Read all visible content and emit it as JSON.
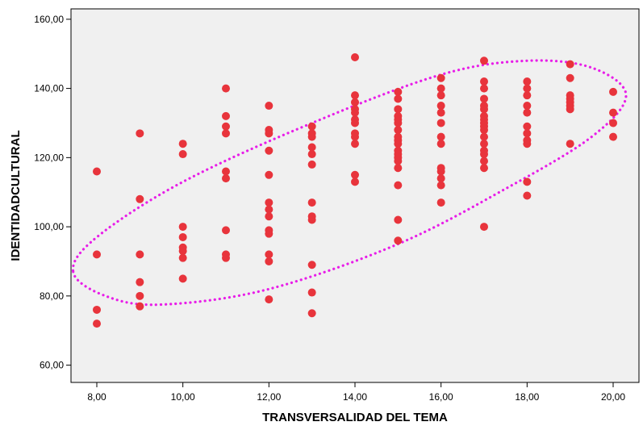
{
  "chart_data": {
    "type": "scatter",
    "xlabel": "TRANSVERSALIDAD DEL TEMA",
    "ylabel": "IDENTIDADCULTURAL",
    "xlim": [
      7.4,
      20.6
    ],
    "ylim": [
      55,
      163
    ],
    "x_ticks": [
      "8,00",
      "10,00",
      "12,00",
      "14,00",
      "16,00",
      "18,00",
      "20,00"
    ],
    "y_ticks": [
      "60,00",
      "80,00",
      "100,00",
      "120,00",
      "140,00",
      "160,00"
    ],
    "grid": false,
    "plot_background": "#f0f0f0",
    "marker_color": "#e8343c",
    "ellipse_color": "#e81ee8",
    "ellipse": {
      "description": "dotted confidence ellipse",
      "points": [
        [
          7.45,
          87
        ],
        [
          8.2,
          80
        ],
        [
          9.5,
          77.5
        ],
        [
          12.0,
          82
        ],
        [
          15.0,
          95
        ],
        [
          17.5,
          111
        ],
        [
          19.5,
          126
        ],
        [
          20.3,
          138
        ],
        [
          19.5,
          146
        ],
        [
          18.0,
          148
        ],
        [
          16.0,
          144
        ],
        [
          13.0,
          130
        ],
        [
          10.0,
          113
        ],
        [
          8.0,
          97
        ]
      ]
    },
    "points": [
      [
        8,
        116
      ],
      [
        8,
        92
      ],
      [
        8,
        76
      ],
      [
        8,
        72
      ],
      [
        9,
        127
      ],
      [
        9,
        108
      ],
      [
        9,
        92
      ],
      [
        9,
        84
      ],
      [
        9,
        80
      ],
      [
        9,
        77
      ],
      [
        10,
        124
      ],
      [
        10,
        121
      ],
      [
        10,
        100
      ],
      [
        10,
        97
      ],
      [
        10,
        94
      ],
      [
        10,
        93
      ],
      [
        10,
        91
      ],
      [
        10,
        85
      ],
      [
        11,
        140
      ],
      [
        11,
        132
      ],
      [
        11,
        129
      ],
      [
        11,
        127
      ],
      [
        11,
        116
      ],
      [
        11,
        114
      ],
      [
        11,
        99
      ],
      [
        11,
        92
      ],
      [
        11,
        91
      ],
      [
        12,
        135
      ],
      [
        12,
        128
      ],
      [
        12,
        127
      ],
      [
        12,
        122
      ],
      [
        12,
        115
      ],
      [
        12,
        107
      ],
      [
        12,
        105
      ],
      [
        12,
        103
      ],
      [
        12,
        99
      ],
      [
        12,
        98
      ],
      [
        12,
        92
      ],
      [
        12,
        90
      ],
      [
        12,
        79
      ],
      [
        13,
        129
      ],
      [
        13,
        127
      ],
      [
        13,
        126
      ],
      [
        13,
        123
      ],
      [
        13,
        121
      ],
      [
        13,
        118
      ],
      [
        13,
        107
      ],
      [
        13,
        103
      ],
      [
        13,
        102
      ],
      [
        13,
        89
      ],
      [
        13,
        81
      ],
      [
        13,
        75
      ],
      [
        14,
        149
      ],
      [
        14,
        138
      ],
      [
        14,
        136
      ],
      [
        14,
        134
      ],
      [
        14,
        133
      ],
      [
        14,
        131
      ],
      [
        14,
        130
      ],
      [
        14,
        127
      ],
      [
        14,
        126
      ],
      [
        14,
        124
      ],
      [
        14,
        115
      ],
      [
        14,
        113
      ],
      [
        15,
        139
      ],
      [
        15,
        137
      ],
      [
        15,
        134
      ],
      [
        15,
        132
      ],
      [
        15,
        131
      ],
      [
        15,
        130
      ],
      [
        15,
        128
      ],
      [
        15,
        126
      ],
      [
        15,
        125
      ],
      [
        15,
        124
      ],
      [
        15,
        122
      ],
      [
        15,
        121
      ],
      [
        15,
        120
      ],
      [
        15,
        119
      ],
      [
        15,
        117
      ],
      [
        15,
        112
      ],
      [
        15,
        102
      ],
      [
        15,
        96
      ],
      [
        16,
        143
      ],
      [
        16,
        140
      ],
      [
        16,
        138
      ],
      [
        16,
        135
      ],
      [
        16,
        133
      ],
      [
        16,
        130
      ],
      [
        16,
        126
      ],
      [
        16,
        124
      ],
      [
        16,
        117
      ],
      [
        16,
        116
      ],
      [
        16,
        114
      ],
      [
        16,
        112
      ],
      [
        16,
        107
      ],
      [
        17,
        148
      ],
      [
        17,
        142
      ],
      [
        17,
        140
      ],
      [
        17,
        137
      ],
      [
        17,
        135
      ],
      [
        17,
        134
      ],
      [
        17,
        132
      ],
      [
        17,
        131
      ],
      [
        17,
        130
      ],
      [
        17,
        129
      ],
      [
        17,
        128
      ],
      [
        17,
        126
      ],
      [
        17,
        124
      ],
      [
        17,
        122
      ],
      [
        17,
        121
      ],
      [
        17,
        119
      ],
      [
        17,
        117
      ],
      [
        17,
        100
      ],
      [
        18,
        142
      ],
      [
        18,
        140
      ],
      [
        18,
        138
      ],
      [
        18,
        135
      ],
      [
        18,
        133
      ],
      [
        18,
        129
      ],
      [
        18,
        127
      ],
      [
        18,
        125
      ],
      [
        18,
        124
      ],
      [
        18,
        113
      ],
      [
        18,
        109
      ],
      [
        19,
        147
      ],
      [
        19,
        143
      ],
      [
        19,
        138
      ],
      [
        19,
        137
      ],
      [
        19,
        136
      ],
      [
        19,
        135
      ],
      [
        19,
        134
      ],
      [
        19,
        124
      ],
      [
        20,
        139
      ],
      [
        20,
        133
      ],
      [
        20,
        130
      ],
      [
        20,
        126
      ]
    ]
  }
}
